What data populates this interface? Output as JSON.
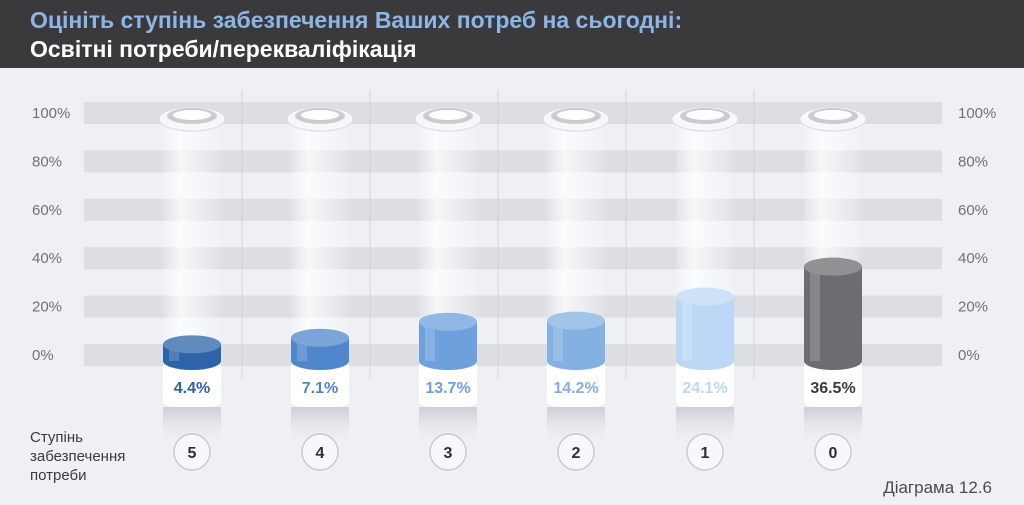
{
  "header": {
    "title": "Оцініть ступінь забезпечення Ваших потреб на сьогодні:",
    "subtitle": "Освітні потреби/перекваліфікація"
  },
  "chart_data": {
    "type": "bar",
    "categories": [
      "5",
      "4",
      "3",
      "2",
      "1",
      "0"
    ],
    "values": [
      4.4,
      7.1,
      13.7,
      14.2,
      24.1,
      36.5
    ],
    "value_labels": [
      "4.4%",
      "7.1%",
      "13.7%",
      "14.2%",
      "24.1%",
      "36.5%"
    ],
    "yticks": [
      "0%",
      "20%",
      "40%",
      "60%",
      "80%",
      "100%"
    ],
    "ylim": [
      0,
      100
    ],
    "grid": true,
    "colors": {
      "5": "#2d63a8",
      "4": "#4f86cc",
      "3": "#6da0dc",
      "2": "#84b1e2",
      "1": "#bcd8f5",
      "0": "#6c6d70"
    }
  },
  "row_label": "Ступінь забезпечення потреби",
  "caption": "Діаграма 12.6"
}
